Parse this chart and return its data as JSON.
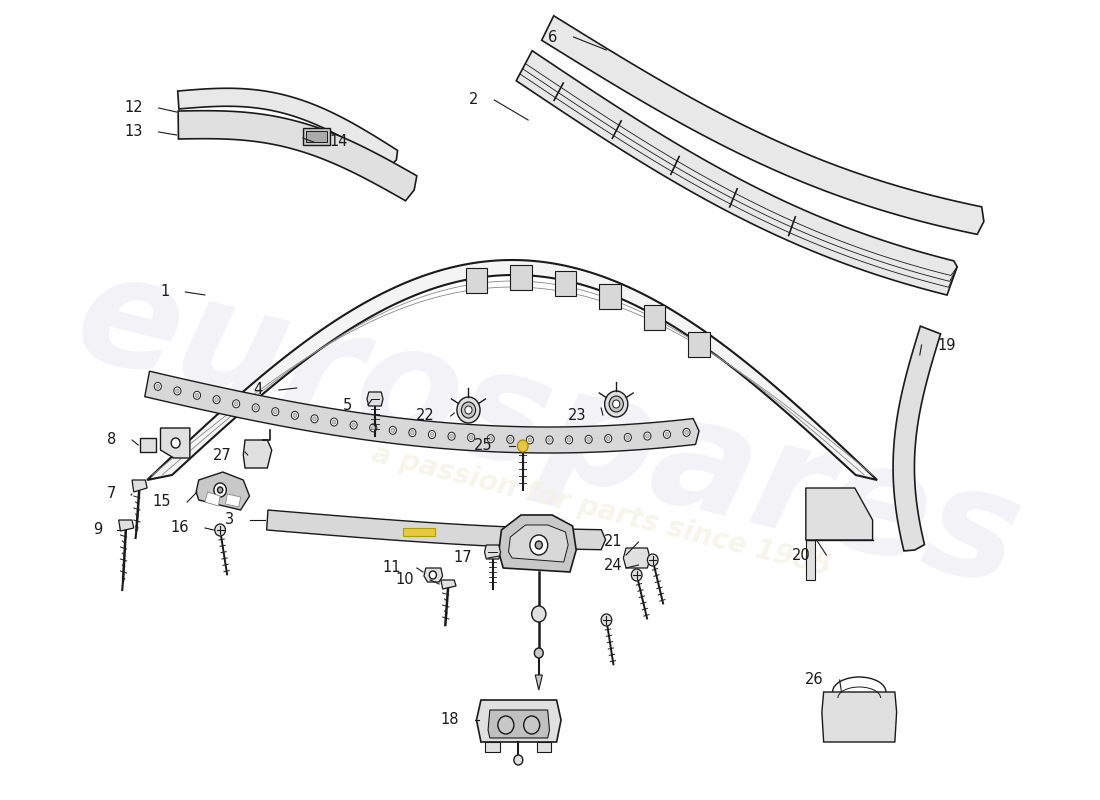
{
  "bg": "#ffffff",
  "lc": "#1a1a1a",
  "lw": 1.4,
  "fs": 10.5,
  "wm1": "eurospares",
  "wm2": "a passion for parts since 1985",
  "wm1_color": "#e8e8f2",
  "wm2_color": "#f2f2e4",
  "yellow": "#e8c840",
  "fill_light": "#f0f0f0",
  "fill_mid": "#e0e0e0",
  "fill_dark": "#c8c8c8"
}
